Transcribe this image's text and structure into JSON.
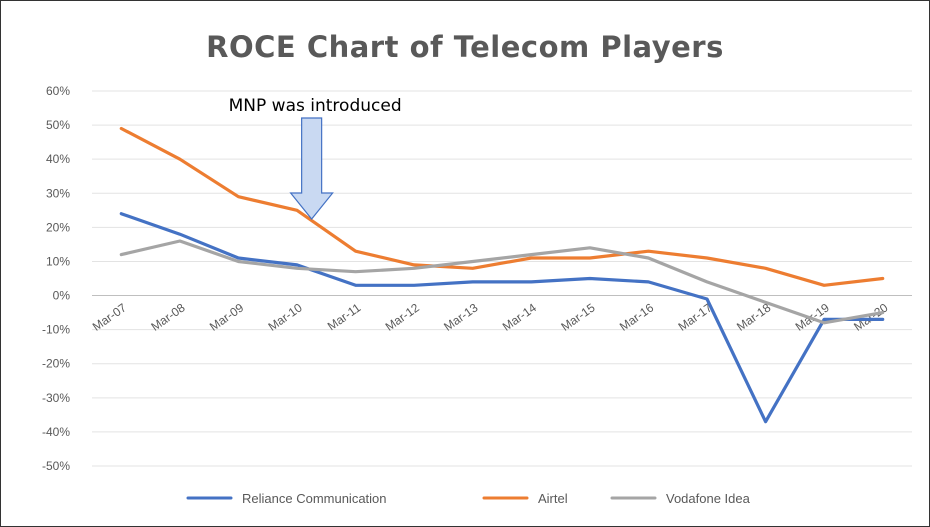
{
  "chart_data": {
    "type": "line",
    "title": "ROCE Chart of Telecom Players",
    "annotation": "MNP was introduced",
    "categories": [
      "Mar-07",
      "Mar-08",
      "Mar-09",
      "Mar-10",
      "Mar-11",
      "Mar-12",
      "Mar-13",
      "Mar-14",
      "Mar-15",
      "Mar-16",
      "Mar-17",
      "Mar-18",
      "Mar-19",
      "Mar-20"
    ],
    "ylim": [
      -50,
      60
    ],
    "yticks": [
      60,
      50,
      40,
      30,
      20,
      10,
      0,
      -10,
      -20,
      -30,
      -40,
      -50
    ],
    "ytick_labels": [
      "60%",
      "50%",
      "40%",
      "30%",
      "20%",
      "10%",
      "0%",
      "-10%",
      "-20%",
      "-30%",
      "-40%",
      "-50%"
    ],
    "grid": true,
    "legend_position": "bottom",
    "series": [
      {
        "name": "Reliance Communication",
        "color": "#4472C4",
        "values": [
          24,
          18,
          11,
          9,
          3,
          3,
          4,
          4,
          5,
          4,
          -1,
          -37,
          -7,
          -7
        ]
      },
      {
        "name": "Airtel",
        "color": "#ED7D31",
        "values": [
          49,
          40,
          29,
          25,
          13,
          9,
          8,
          11,
          11,
          13,
          11,
          8,
          3,
          5
        ]
      },
      {
        "name": "Vodafone Idea",
        "color": "#A5A5A5",
        "values": [
          12,
          16,
          10,
          8,
          7,
          8,
          10,
          12,
          14,
          11,
          4,
          -2,
          -8,
          -5
        ]
      }
    ]
  }
}
